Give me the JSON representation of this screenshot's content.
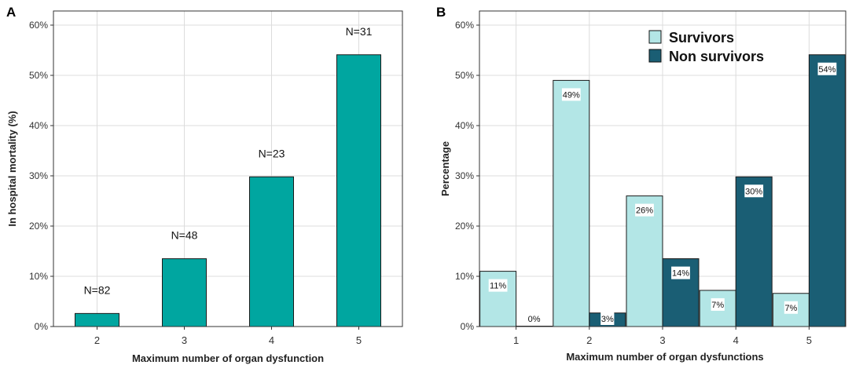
{
  "chart_data": [
    {
      "panel_label": "A",
      "type": "bar",
      "categories": [
        "2",
        "3",
        "4",
        "5"
      ],
      "values": [
        2.6,
        13.5,
        29.8,
        54.1
      ],
      "bar_labels": [
        "N=82",
        "N=48",
        "N=23",
        "N=31"
      ],
      "xlabel": "Maximum number of organ dysfunction",
      "ylabel": "In hospital mortality (%)",
      "ylim": [
        0,
        60
      ],
      "yticks": [
        0,
        10,
        20,
        30,
        40,
        50,
        60
      ],
      "ytick_labels": [
        "0%",
        "10%",
        "20%",
        "30%",
        "40%",
        "50%",
        "60%"
      ],
      "grid": true,
      "bar_color": "#00a6a0"
    },
    {
      "panel_label": "B",
      "type": "bar",
      "categories": [
        "1",
        "2",
        "3",
        "4",
        "5"
      ],
      "series": [
        {
          "name": "Survivors",
          "values": [
            11,
            49,
            26,
            7.2,
            6.6
          ],
          "labels": [
            "11%",
            "49%",
            "26%",
            "7%",
            "7%"
          ],
          "color": "#b3e6e6"
        },
        {
          "name": "Non survivors",
          "values": [
            0,
            2.7,
            13.5,
            29.8,
            54.1
          ],
          "labels": [
            "0%",
            "3%",
            "14%",
            "30%",
            "54%"
          ],
          "color": "#1a5e74"
        }
      ],
      "xlabel": "Maximum number of organ dysfunctions",
      "ylabel": "Percentage",
      "ylim": [
        0,
        60
      ],
      "yticks": [
        0,
        10,
        20,
        30,
        40,
        50,
        60
      ],
      "ytick_labels": [
        "0%",
        "10%",
        "20%",
        "30%",
        "40%",
        "50%",
        "60%"
      ],
      "grid": true,
      "legend_position": "top-right"
    }
  ]
}
